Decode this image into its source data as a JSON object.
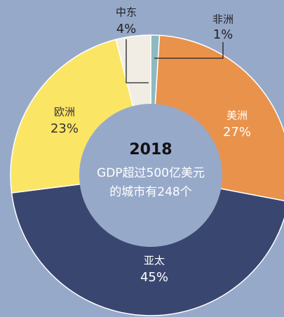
{
  "chart_data": {
    "type": "donut",
    "categories": [
      "非洲",
      "美洲",
      "亚太",
      "欧洲",
      "中东"
    ],
    "values": [
      1,
      27,
      45,
      23,
      4
    ],
    "value_labels": [
      "1%",
      "27%",
      "45%",
      "23%",
      "4%"
    ],
    "colors": [
      "#8fb9c1",
      "#e9924b",
      "#394670",
      "#fbe565",
      "#f1ede5"
    ],
    "center_title": "2018",
    "center_text": [
      "GDP超过500亿美元",
      "的城市有248个"
    ]
  }
}
